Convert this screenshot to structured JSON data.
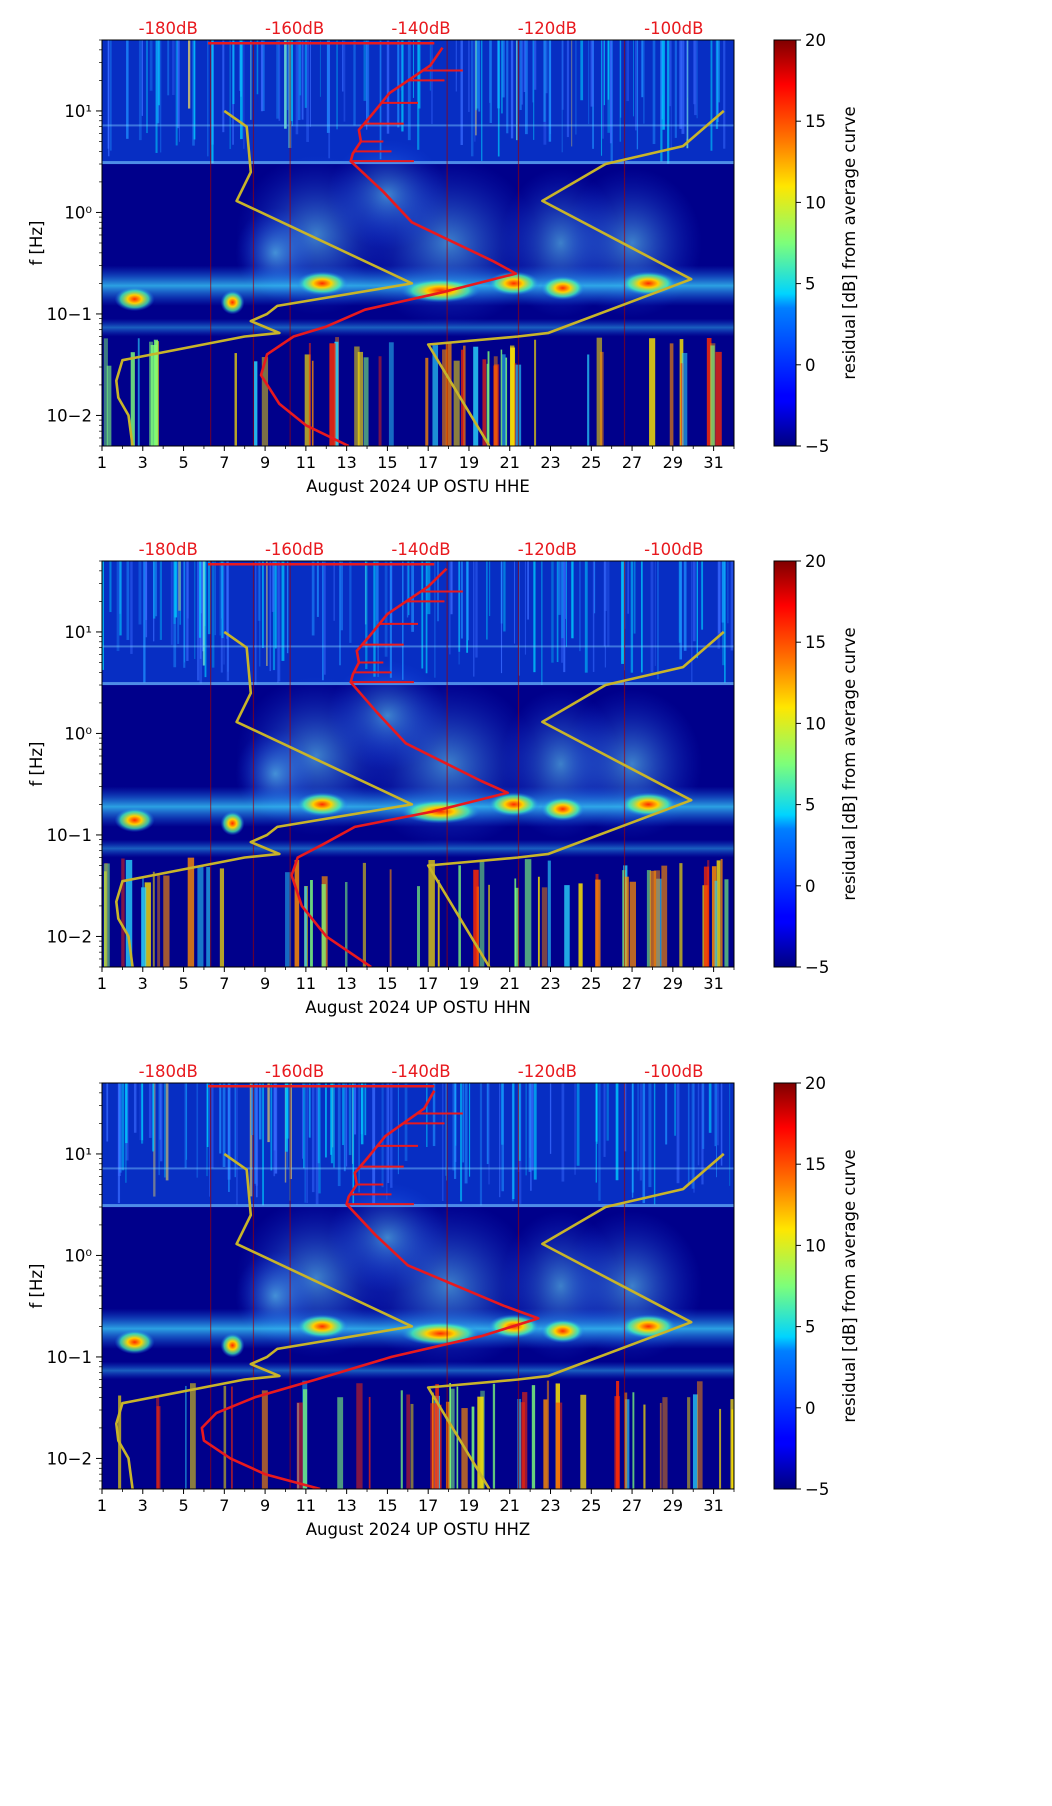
{
  "figure": {
    "colorbar_label": "residual [dB] from average curve",
    "ylabel": "f [Hz]",
    "top_axis_labels": [
      "-180dB",
      "-160dB",
      "-140dB",
      "-120dB",
      "-100dB"
    ],
    "colors": {
      "noise_model": "#c8b42a",
      "median_curve": "#e8191e",
      "top_labels": "#e8191e",
      "background": "#00008b"
    }
  },
  "chart_data": [
    {
      "type": "heatmap",
      "title": "August 2024 UP OSTU  HHE",
      "xlabel": "August 2024 UP OSTU  HHE",
      "ylabel": "f [Hz]",
      "x_ticks": [
        1,
        3,
        5,
        7,
        9,
        11,
        13,
        15,
        17,
        19,
        21,
        23,
        25,
        27,
        29,
        31
      ],
      "xlim": [
        1,
        32
      ],
      "y_ticks": [
        "10−2",
        "10−1",
        "10⁰",
        "10¹"
      ],
      "y_tick_values": [
        0.01,
        0.1,
        1,
        10
      ],
      "ylim": [
        0.005,
        50
      ],
      "colorbar": {
        "min": -5,
        "max": 20,
        "ticks": [
          "−5",
          "0",
          "5",
          "10",
          "15",
          "20"
        ],
        "label": "residual [dB] from average curve"
      },
      "top_axis": {
        "labels": [
          "-180dB",
          "-160dB",
          "-140dB",
          "-120dB",
          "-100dB"
        ],
        "values_db": [
          -180,
          -160,
          -140,
          -120,
          -100
        ]
      },
      "series": [
        {
          "name": "NLNM",
          "x": [
            2.5,
            2.3,
            1.8,
            1.7,
            2.0,
            8.0,
            9.7,
            8.3,
            9.1,
            9.6,
            16.2,
            7.6,
            8.3,
            8.1,
            7.0
          ],
          "y": [
            0.005,
            0.01,
            0.015,
            0.022,
            0.035,
            0.06,
            0.065,
            0.085,
            0.1,
            0.12,
            0.2,
            1.3,
            2.5,
            7.0,
            10
          ]
        },
        {
          "name": "NHNM",
          "x": [
            20.0,
            17.0,
            21.4,
            22.9,
            29.9,
            22.6,
            25.7,
            29.5,
            31.5
          ],
          "y": [
            0.005,
            0.05,
            0.06,
            0.065,
            0.22,
            1.3,
            3.0,
            4.5,
            10
          ]
        },
        {
          "name": "median PSD",
          "x": [
            13.1,
            11.0,
            9.7,
            8.8,
            9.1,
            10.4,
            12.0,
            13.9,
            17.5,
            21.3,
            20.2,
            16.2,
            14.8,
            13.2,
            13.3,
            13.7,
            13.6,
            14.2,
            15.1,
            17.1,
            17.7
          ],
          "y": [
            0.005,
            0.008,
            0.013,
            0.025,
            0.04,
            0.06,
            0.075,
            0.11,
            0.16,
            0.25,
            0.33,
            0.8,
            1.6,
            3.2,
            3.8,
            5.0,
            6.5,
            9.0,
            15.0,
            28.0,
            42.0
          ]
        }
      ]
    },
    {
      "type": "heatmap",
      "title": "August 2024 UP OSTU  HHN",
      "xlabel": "August 2024 UP OSTU  HHN",
      "ylabel": "f [Hz]",
      "x_ticks": [
        1,
        3,
        5,
        7,
        9,
        11,
        13,
        15,
        17,
        19,
        21,
        23,
        25,
        27,
        29,
        31
      ],
      "xlim": [
        1,
        32
      ],
      "y_ticks": [
        "10−2",
        "10−1",
        "10⁰",
        "10¹"
      ],
      "y_tick_values": [
        0.01,
        0.1,
        1,
        10
      ],
      "ylim": [
        0.005,
        50
      ],
      "colorbar": {
        "min": -5,
        "max": 20,
        "ticks": [
          "−5",
          "0",
          "5",
          "10",
          "15",
          "20"
        ],
        "label": "residual [dB] from average curve"
      },
      "top_axis": {
        "labels": [
          "-180dB",
          "-160dB",
          "-140dB",
          "-120dB",
          "-100dB"
        ],
        "values_db": [
          -180,
          -160,
          -140,
          -120,
          -100
        ]
      },
      "series": [
        {
          "name": "NLNM",
          "x": [
            2.5,
            2.3,
            1.8,
            1.7,
            2.0,
            8.0,
            9.7,
            8.3,
            9.1,
            9.6,
            16.2,
            7.6,
            8.3,
            8.1,
            7.0
          ],
          "y": [
            0.005,
            0.01,
            0.015,
            0.022,
            0.035,
            0.06,
            0.065,
            0.085,
            0.1,
            0.12,
            0.2,
            1.3,
            2.5,
            7.0,
            10
          ]
        },
        {
          "name": "NHNM",
          "x": [
            20.0,
            17.0,
            21.4,
            22.9,
            29.9,
            22.6,
            25.7,
            29.5,
            31.5
          ],
          "y": [
            0.005,
            0.05,
            0.06,
            0.065,
            0.22,
            1.3,
            3.0,
            4.5,
            10
          ]
        },
        {
          "name": "median PSD",
          "x": [
            14.2,
            12.0,
            10.8,
            10.3,
            10.6,
            11.8,
            13.4,
            17.2,
            20.9,
            19.6,
            15.9,
            14.5,
            13.2,
            13.3,
            13.6,
            13.5,
            14.1,
            15.0,
            17.0,
            17.9
          ],
          "y": [
            0.005,
            0.01,
            0.02,
            0.04,
            0.06,
            0.08,
            0.12,
            0.17,
            0.26,
            0.34,
            0.8,
            1.6,
            3.2,
            3.8,
            5.0,
            6.5,
            9.0,
            15.0,
            28.0,
            42.0
          ]
        }
      ]
    },
    {
      "type": "heatmap",
      "title": "August 2024 UP OSTU  HHZ",
      "xlabel": "August 2024 UP OSTU  HHZ",
      "ylabel": "f [Hz]",
      "x_ticks": [
        1,
        3,
        5,
        7,
        9,
        11,
        13,
        15,
        17,
        19,
        21,
        23,
        25,
        27,
        29,
        31
      ],
      "xlim": [
        1,
        32
      ],
      "y_ticks": [
        "10−2",
        "10−1",
        "10⁰",
        "10¹"
      ],
      "y_tick_values": [
        0.01,
        0.1,
        1,
        10
      ],
      "ylim": [
        0.005,
        50
      ],
      "colorbar": {
        "min": -5,
        "max": 20,
        "ticks": [
          "−5",
          "0",
          "5",
          "10",
          "15",
          "20"
        ],
        "label": "residual [dB] from average curve"
      },
      "top_axis": {
        "labels": [
          "-180dB",
          "-160dB",
          "-140dB",
          "-120dB",
          "-100dB"
        ],
        "values_db": [
          -180,
          -160,
          -140,
          -120,
          -100
        ]
      },
      "series": [
        {
          "name": "NLNM",
          "x": [
            2.5,
            2.3,
            1.8,
            1.7,
            2.0,
            8.0,
            9.7,
            8.3,
            9.1,
            9.6,
            16.2,
            7.6,
            8.3,
            8.1,
            7.0
          ],
          "y": [
            0.005,
            0.01,
            0.015,
            0.022,
            0.035,
            0.06,
            0.065,
            0.085,
            0.1,
            0.12,
            0.2,
            1.3,
            2.5,
            7.0,
            10
          ]
        },
        {
          "name": "NHNM",
          "x": [
            20.0,
            17.0,
            21.4,
            22.9,
            29.9,
            22.6,
            25.7,
            29.5,
            31.5
          ],
          "y": [
            0.005,
            0.05,
            0.06,
            0.065,
            0.22,
            1.3,
            3.0,
            4.5,
            10
          ]
        },
        {
          "name": "median PSD",
          "x": [
            11.7,
            9.0,
            7.3,
            6.0,
            5.9,
            6.6,
            8.5,
            11.5,
            15.2,
            19.6,
            22.4,
            20.7,
            16.0,
            14.4,
            13.0,
            13.1,
            13.5,
            13.4,
            14.0,
            14.9,
            16.8,
            17.3
          ],
          "y": [
            0.005,
            0.007,
            0.01,
            0.015,
            0.02,
            0.028,
            0.04,
            0.06,
            0.1,
            0.16,
            0.24,
            0.32,
            0.8,
            1.6,
            3.2,
            3.8,
            5.0,
            6.5,
            9.0,
            15.0,
            28.0,
            42.0
          ]
        }
      ]
    }
  ]
}
